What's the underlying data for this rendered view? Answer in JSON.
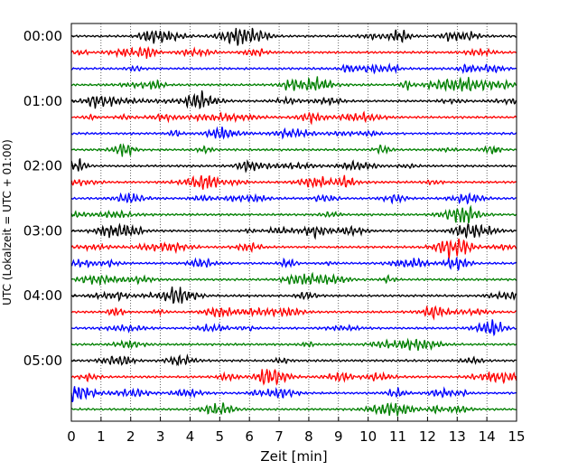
{
  "chart_data": {
    "type": "line",
    "title": "",
    "xlabel": "Zeit  [min]",
    "ylabel": "UTC (Lokalzeit = UTC + 01:00)",
    "xlim": [
      0,
      15
    ],
    "x_ticks": [
      0,
      1,
      2,
      3,
      4,
      5,
      6,
      7,
      8,
      9,
      10,
      11,
      12,
      13,
      14,
      15
    ],
    "y_tick_labels": [
      "00:00",
      "01:00",
      "02:00",
      "03:00",
      "04:00",
      "05:00"
    ],
    "trace_interval_minutes": 15,
    "trace_count": 24,
    "trace_colors": [
      "#000000",
      "#ff0000",
      "#0000ff",
      "#008000"
    ],
    "grid": {
      "vertical_dotted": true
    },
    "trace_start_times": [
      "00:00",
      "00:15",
      "00:30",
      "00:45",
      "01:00",
      "01:15",
      "01:30",
      "01:45",
      "02:00",
      "02:15",
      "02:30",
      "02:45",
      "03:00",
      "03:15",
      "03:30",
      "03:45",
      "04:00",
      "04:15",
      "04:30",
      "04:45",
      "05:00",
      "05:15",
      "05:30",
      "05:45"
    ]
  }
}
